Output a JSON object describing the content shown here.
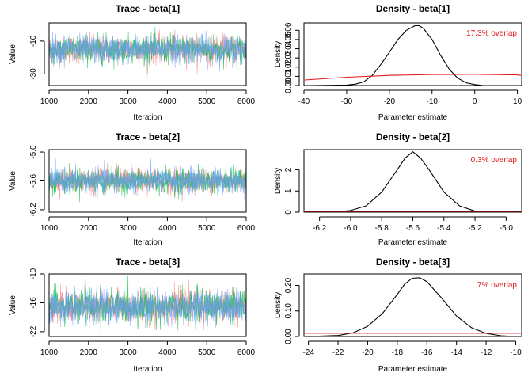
{
  "colors": {
    "chains": [
      "#F8766D",
      "#00BA38",
      "#619CFF",
      "#6BA6C9"
    ],
    "prior": "#E41A1C",
    "posterior": "#000000",
    "overlap_text": "#E41A1C"
  },
  "chart_data": [
    {
      "type": "line",
      "title": "Trace - beta[1]",
      "xlabel": "Iteration",
      "ylabel": "Value",
      "xlim": [
        1000,
        6000
      ],
      "ylim": [
        -37,
        1
      ],
      "xticks": [
        1000,
        2000,
        3000,
        4000,
        5000,
        6000
      ],
      "yticks": [
        -10,
        -30
      ],
      "trace_center": -15,
      "trace_sd": 4.3,
      "trace_range": [
        -36,
        0
      ]
    },
    {
      "type": "line",
      "title": "Density - beta[1]",
      "xlabel": "Parameter estimate",
      "ylabel": "Density",
      "xlim": [
        -40,
        11
      ],
      "ylim": [
        0,
        0.068
      ],
      "xticks": [
        -40,
        -30,
        -20,
        -10,
        0,
        10
      ],
      "yticks": [
        0.0,
        0.01,
        0.02,
        0.03,
        0.04,
        0.05,
        0.06
      ],
      "ytick_labels": [
        "0.00",
        "0.01",
        "0.02",
        "0.03",
        "0.04",
        "0.05",
        "0.06"
      ],
      "annotation": "17.3% overlap",
      "series": [
        {
          "role": "posterior",
          "x": [
            -38.5,
            -30,
            -28,
            -26,
            -24,
            -22,
            -20,
            -18,
            -16,
            -14,
            -13,
            -12,
            -10,
            -8,
            -6,
            -4,
            -2,
            0,
            2
          ],
          "y": [
            0.0,
            0.0005,
            0.0015,
            0.004,
            0.011,
            0.023,
            0.036,
            0.05,
            0.06,
            0.065,
            0.065,
            0.062,
            0.05,
            0.033,
            0.018,
            0.008,
            0.003,
            0.001,
            0.0
          ]
        },
        {
          "role": "prior",
          "x": [
            -42,
            -30,
            -20,
            -10,
            0,
            10,
            12
          ],
          "y": [
            0.006,
            0.009,
            0.011,
            0.012,
            0.0122,
            0.0115,
            0.011
          ]
        }
      ]
    },
    {
      "type": "line",
      "title": "Trace - beta[2]",
      "xlabel": "Iteration",
      "ylabel": "Value",
      "xlim": [
        1000,
        6000
      ],
      "ylim": [
        -6.25,
        -4.95
      ],
      "xticks": [
        1000,
        2000,
        3000,
        4000,
        5000,
        6000
      ],
      "yticks": [
        -5.0,
        -5.6,
        -6.2
      ],
      "ytick_labels": [
        "-5.0",
        "-5.6",
        "-6.2"
      ],
      "trace_center": -5.6,
      "trace_sd": 0.13,
      "trace_range": [
        -6.18,
        -5.02
      ]
    },
    {
      "type": "line",
      "title": "Density - beta[2]",
      "xlabel": "Parameter estimate",
      "ylabel": "Density",
      "xlim": [
        -6.3,
        -4.9
      ],
      "ylim": [
        0,
        2.95
      ],
      "xticks": [
        -6.2,
        -6.0,
        -5.8,
        -5.6,
        -5.4,
        -5.2,
        -5.0
      ],
      "xtick_labels": [
        "-6.2",
        "-6.0",
        "-5.8",
        "-5.6",
        "-5.4",
        "-5.2",
        "-5.0"
      ],
      "yticks": [
        0,
        1,
        2
      ],
      "annotation": "0.3% overlap",
      "series": [
        {
          "role": "posterior",
          "x": [
            -6.12,
            -6.0,
            -5.9,
            -5.8,
            -5.7,
            -5.65,
            -5.6,
            -5.55,
            -5.5,
            -5.4,
            -5.3,
            -5.2,
            -5.1
          ],
          "y": [
            0.0,
            0.08,
            0.3,
            0.95,
            2.0,
            2.55,
            2.85,
            2.55,
            2.05,
            0.95,
            0.3,
            0.05,
            0.0
          ]
        },
        {
          "role": "prior",
          "x": [
            -6.35,
            -4.85
          ],
          "y": [
            0.02,
            0.02
          ]
        }
      ]
    },
    {
      "type": "line",
      "title": "Trace - beta[3]",
      "xlabel": "Iteration",
      "ylabel": "Value",
      "xlim": [
        1000,
        6000
      ],
      "ylim": [
        -23,
        -10
      ],
      "xticks": [
        1000,
        2000,
        3000,
        4000,
        5000,
        6000
      ],
      "yticks": [
        -10,
        -16,
        -22
      ],
      "trace_center": -16.8,
      "trace_sd": 1.75,
      "trace_range": [
        -22.5,
        -10.5
      ]
    },
    {
      "type": "line",
      "title": "Density - beta[3]",
      "xlabel": "Parameter estimate",
      "ylabel": "Density",
      "xlim": [
        -24.3,
        -9.6
      ],
      "ylim": [
        0,
        0.245
      ],
      "xticks": [
        -24,
        -22,
        -20,
        -18,
        -16,
        -14,
        -12,
        -10
      ],
      "yticks": [
        0.0,
        0.1,
        0.2
      ],
      "ytick_labels": [
        "0.00",
        "0.10",
        "0.20"
      ],
      "annotation": "7% overlap",
      "series": [
        {
          "role": "posterior",
          "x": [
            -24,
            -22,
            -21,
            -20,
            -19,
            -18,
            -17.5,
            -17,
            -16.5,
            -16,
            -15,
            -14,
            -13,
            -12,
            -11,
            -10
          ],
          "y": [
            0.0,
            0.004,
            0.014,
            0.04,
            0.09,
            0.165,
            0.205,
            0.228,
            0.23,
            0.215,
            0.15,
            0.08,
            0.035,
            0.012,
            0.003,
            0.0
          ]
        },
        {
          "role": "prior",
          "x": [
            -24.6,
            -9.3
          ],
          "y": [
            0.013,
            0.013
          ]
        }
      ]
    }
  ]
}
